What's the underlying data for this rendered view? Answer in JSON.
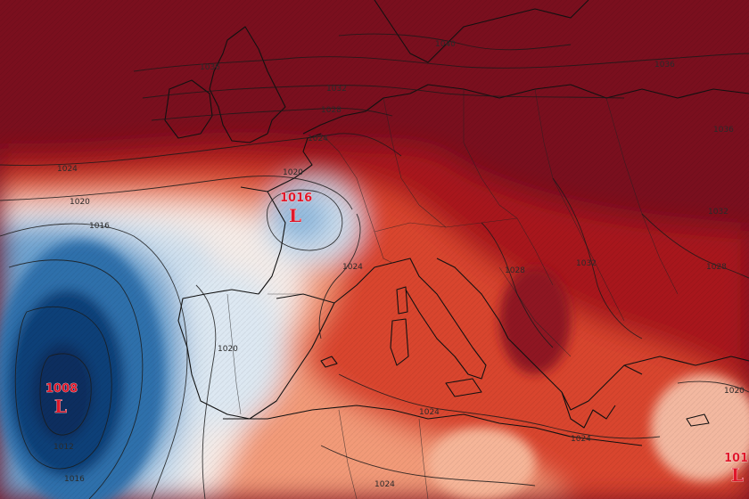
{
  "colors": {
    "high_dark": "#7a0f1e",
    "high_mid": "#a8141f",
    "warm": "#d9452f",
    "warm_light": "#f29a78",
    "neutral": "#f5ece8",
    "cool_light": "#cfe0ee",
    "cool": "#6fa3cf",
    "low_mid": "#2f6fab",
    "low_dark": "#0f3f78",
    "isobar": "#1a1a1a",
    "low_marker": "#e0182a"
  },
  "isobar_labels": {
    "i1036_nw": "1036",
    "i1040": "1040",
    "i1036_ne": "1036",
    "i1036_e": "1036",
    "i1032_n": "1032",
    "i1028_n": "1028",
    "i1024_n": "1024",
    "i1024_w": "1024",
    "i1020_nw": "1020",
    "i1020_fr": "1020",
    "i1016_w": "1016",
    "i1024_alps": "1024",
    "i1028_bal": "1028",
    "i1032_e": "1032",
    "i1028_e": "1028",
    "i1032_ne": "1032",
    "i1020_sp": "1020",
    "i1024_med": "1024",
    "i1024_af": "1024",
    "i1024_se": "1024",
    "i1012_sw": "1012",
    "i1016_sw": "1016",
    "i1020_se": "1020"
  },
  "pressure_lows": [
    {
      "name": "france",
      "value": "1016",
      "letter": "L"
    },
    {
      "name": "atlantic",
      "value": "1008",
      "letter": "L"
    },
    {
      "name": "levant",
      "value": "101",
      "letter": "L"
    }
  ]
}
